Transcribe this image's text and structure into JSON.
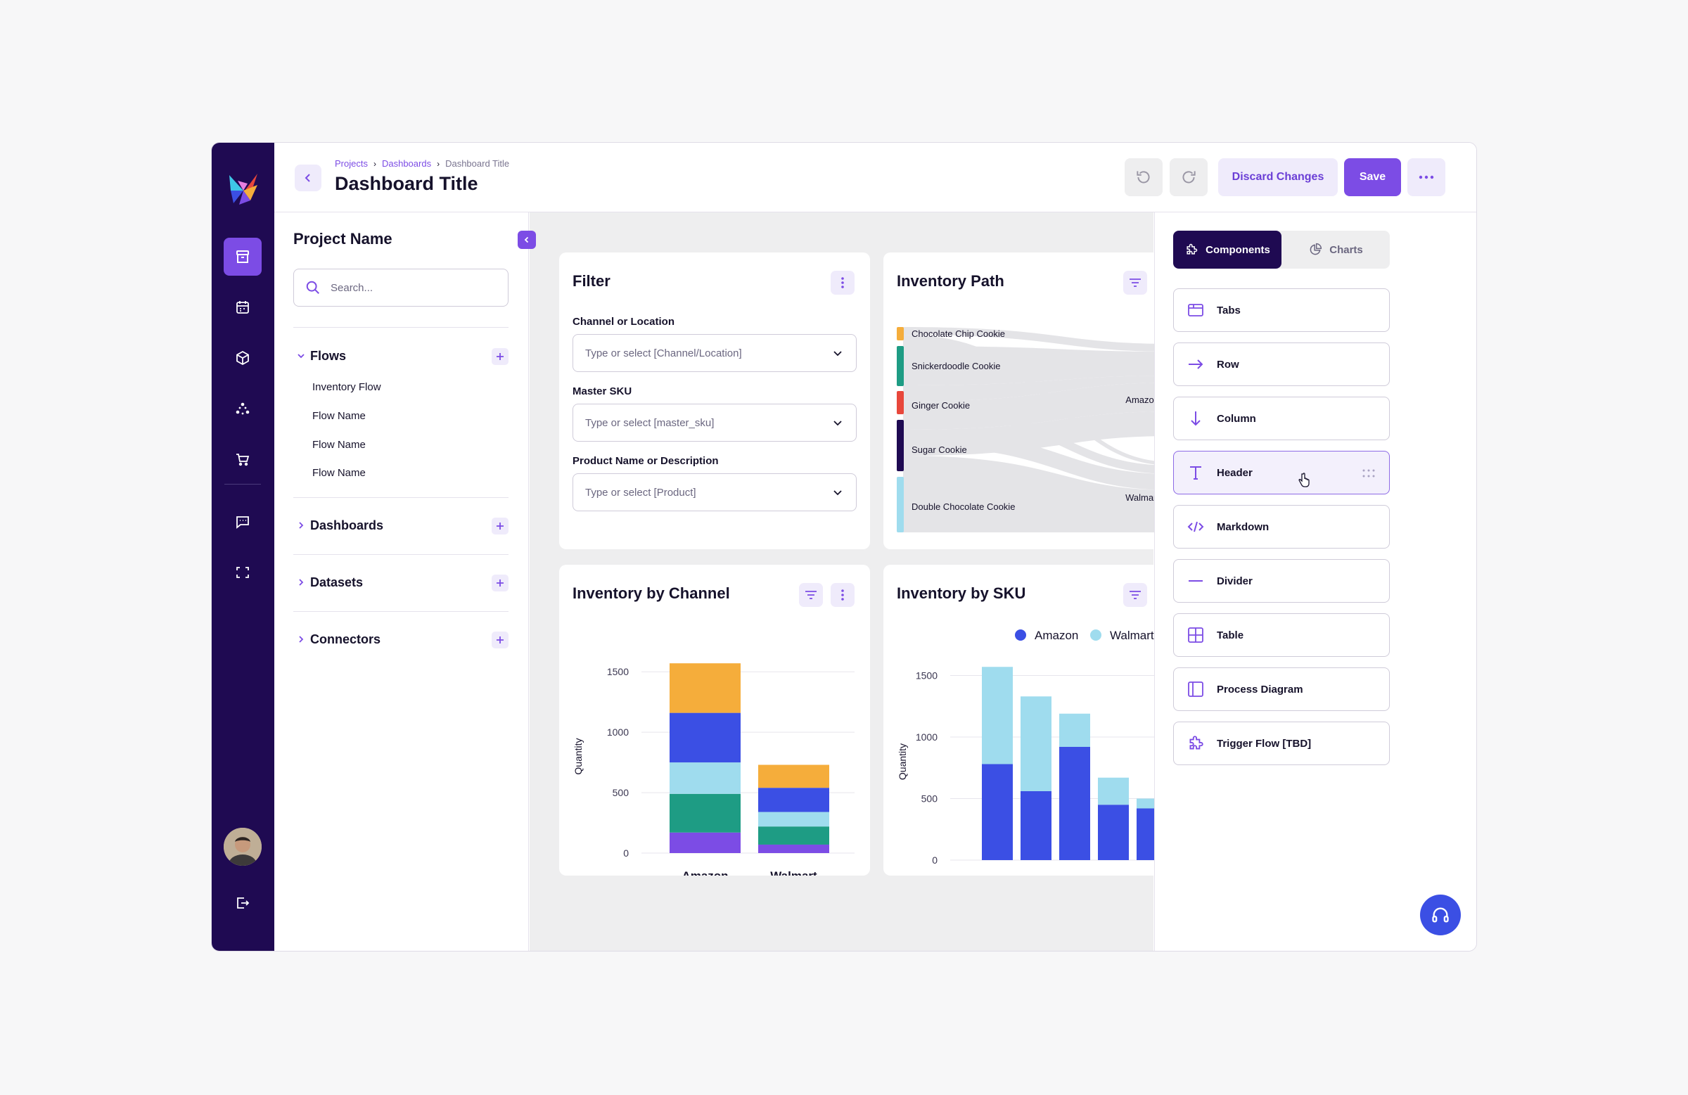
{
  "header": {
    "breadcrumbs": [
      "Projects",
      "Dashboards",
      "Dashboard Title"
    ],
    "title": "Dashboard Title",
    "discard_label": "Discard Changes",
    "save_label": "Save"
  },
  "left_panel": {
    "project_name": "Project Name",
    "search_placeholder": "Search...",
    "sections": [
      {
        "label": "Flows",
        "expanded": true,
        "items": [
          "Inventory Flow",
          "Flow Name",
          "Flow Name",
          "Flow Name"
        ]
      },
      {
        "label": "Dashboards",
        "expanded": false
      },
      {
        "label": "Datasets",
        "expanded": false
      },
      {
        "label": "Connectors",
        "expanded": false
      }
    ]
  },
  "rail": {
    "icons": [
      "archive-icon",
      "calendar-icon",
      "cube-icon",
      "network-icon",
      "cart-icon",
      "chat-icon",
      "scan-icon",
      "logout-icon"
    ]
  },
  "filter_card": {
    "title": "Filter",
    "fields": [
      {
        "label": "Channel or Location",
        "placeholder": "Type or select [Channel/Location]"
      },
      {
        "label": "Master SKU",
        "placeholder": "Type or select [master_sku]"
      },
      {
        "label": "Product Name or Description",
        "placeholder": "Type or select [Product]"
      }
    ]
  },
  "inventory_path": {
    "title": "Inventory Path",
    "sources": [
      {
        "name": "Chocolate Chip Cookie",
        "color": "#f5ad3b"
      },
      {
        "name": "Snickerdoodle Cookie",
        "color": "#1e9c84"
      },
      {
        "name": "Ginger Cookie",
        "color": "#e8473b"
      },
      {
        "name": "Sugar Cookie",
        "color": "#1f0a52"
      },
      {
        "name": "Double Chocolate Cookie",
        "color": "#9fdcee"
      }
    ],
    "targets": [
      {
        "name": "Amazon",
        "color": "#7c4ce5"
      },
      {
        "name": "Walmart",
        "color": "#e77fe0"
      }
    ]
  },
  "chart_data": [
    {
      "type": "bar",
      "stacked": true,
      "title": "Inventory by Channel",
      "categories": [
        "Amazon",
        "Walmart"
      ],
      "ylabel": "Quantity",
      "ylim": [
        0,
        1600
      ],
      "yticks": [
        0,
        500,
        1000,
        1500
      ],
      "grid": true,
      "series": [
        {
          "values": [
            170,
            70
          ],
          "color": "#7c4ce5"
        },
        {
          "values": [
            320,
            150
          ],
          "color": "#1e9c84"
        },
        {
          "values": [
            260,
            120
          ],
          "color": "#9fdcee"
        },
        {
          "values": [
            410,
            200
          ],
          "color": "#3b4fe4"
        },
        {
          "values": [
            410,
            190
          ],
          "color": "#f5ad3b"
        }
      ]
    },
    {
      "type": "bar",
      "stacked": true,
      "title": "Inventory by SKU",
      "categories": [
        "",
        "",
        "",
        "",
        ""
      ],
      "ylabel": "Quantity",
      "ylim": [
        0,
        1600
      ],
      "yticks": [
        0,
        500,
        1000,
        1500
      ],
      "grid": true,
      "legend_position": "top-right",
      "series": [
        {
          "name": "Amazon",
          "values": [
            780,
            560,
            920,
            450,
            420
          ],
          "color": "#3b4fe4"
        },
        {
          "name": "Walmart",
          "values": [
            790,
            770,
            270,
            220,
            80
          ],
          "color": "#9fdcee"
        }
      ]
    }
  ],
  "right_panel": {
    "tabs": [
      "Components",
      "Charts"
    ],
    "active_tab": "Components",
    "components": [
      "Tabs",
      "Row",
      "Column",
      "Header",
      "Markdown",
      "Divider",
      "Table",
      "Process Diagram",
      "Trigger Flow [TBD]"
    ],
    "selected": "Header"
  },
  "colors": {
    "accent": "#7c4ce5",
    "rail": "#1f0a52",
    "canvas": "#eeeeef"
  }
}
